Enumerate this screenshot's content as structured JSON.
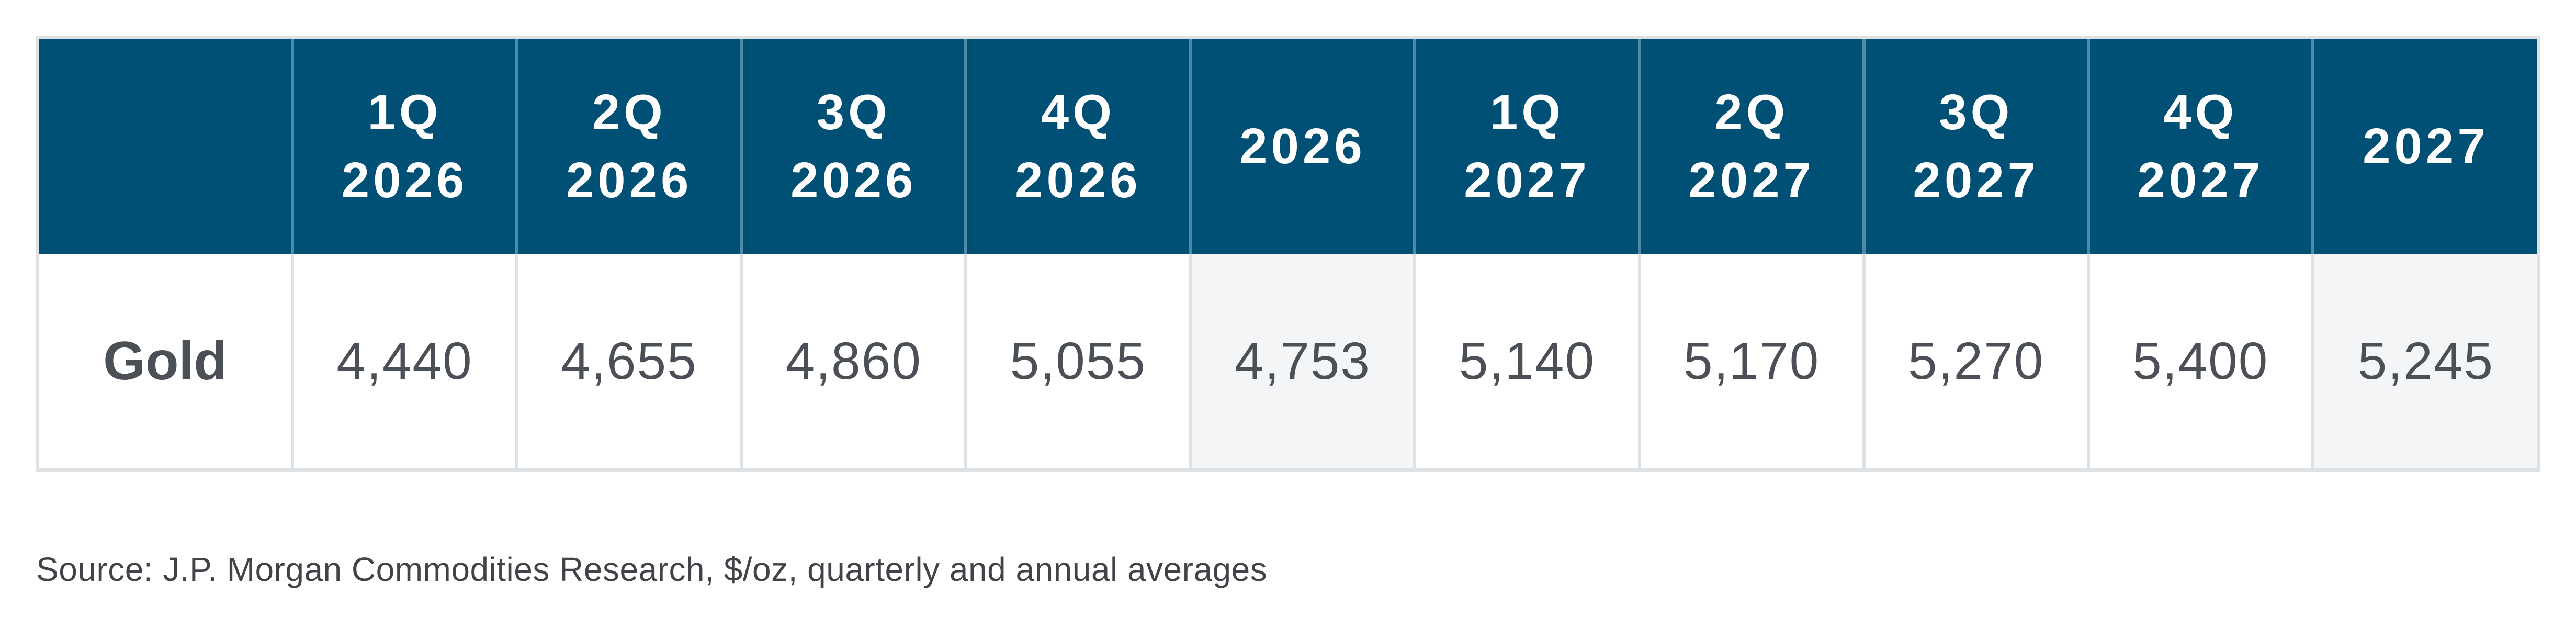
{
  "chart_data": {
    "type": "table",
    "row_header": "",
    "columns": [
      {
        "line1": "1Q",
        "line2": "2026",
        "annual": false
      },
      {
        "line1": "2Q",
        "line2": "2026",
        "annual": false
      },
      {
        "line1": "3Q",
        "line2": "2026",
        "annual": false
      },
      {
        "line1": "4Q",
        "line2": "2026",
        "annual": false
      },
      {
        "line1": "2026",
        "line2": "",
        "annual": true
      },
      {
        "line1": "1Q",
        "line2": "2027",
        "annual": false
      },
      {
        "line1": "2Q",
        "line2": "2027",
        "annual": false
      },
      {
        "line1": "3Q",
        "line2": "2027",
        "annual": false
      },
      {
        "line1": "4Q",
        "line2": "2027",
        "annual": false
      },
      {
        "line1": "2027",
        "line2": "",
        "annual": true
      }
    ],
    "rows": [
      {
        "label": "Gold",
        "values": [
          "4,440",
          "4,655",
          "4,860",
          "5,055",
          "4,753",
          "5,140",
          "5,170",
          "5,270",
          "5,400",
          "5,245"
        ]
      }
    ],
    "source": "Source: J.P. Morgan Commodities Research, $/oz, quarterly and annual averages"
  },
  "colors": {
    "header_background": "#004f74",
    "header_text": "#ffffff",
    "body_text": "#4b4f56",
    "annual_column_background": "#f4f5f7",
    "grid_line": "#dfe2e5"
  }
}
